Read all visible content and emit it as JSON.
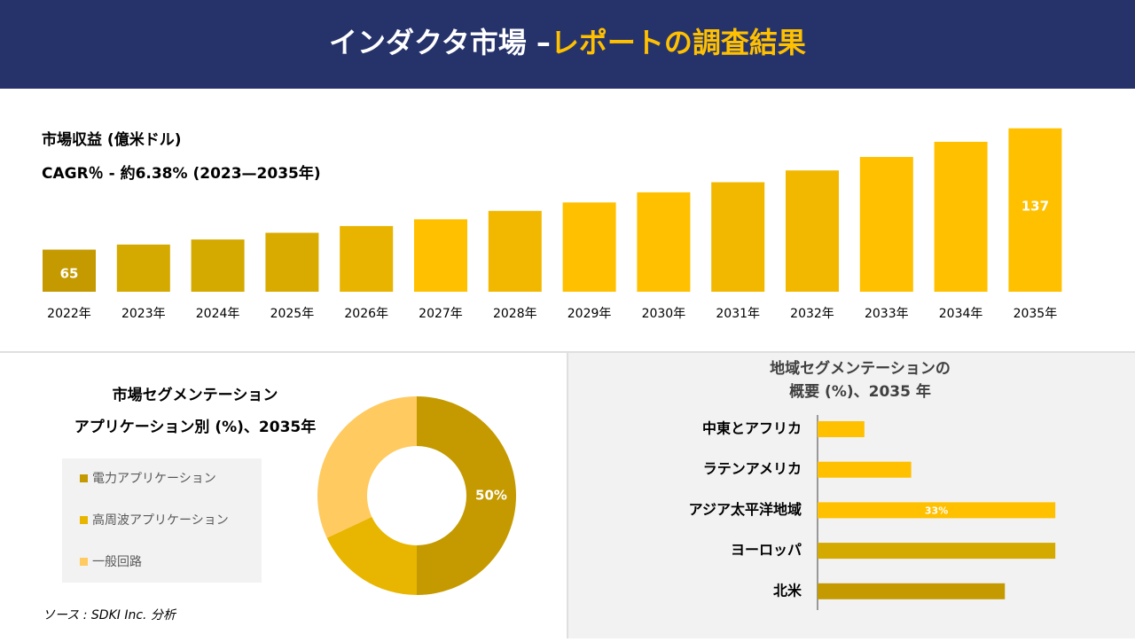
{
  "header": {
    "title_main": "インダクタ市場 –",
    "title_accent": "レポートの調査結果"
  },
  "source": "ソース : SDKI Inc. 分析",
  "chart_data": [
    {
      "type": "bar",
      "title": "市場収益 (億米ドル)",
      "subtitle": "CAGR％ - 約6.38% (2023—2035年)",
      "categories": [
        "2022年",
        "2023年",
        "2024年",
        "2025年",
        "2026年",
        "2027年",
        "2028年",
        "2029年",
        "2030年",
        "2031年",
        "2032年",
        "2033年",
        "2034年",
        "2035年"
      ],
      "values": [
        65,
        68,
        71,
        75,
        79,
        83,
        88,
        93,
        99,
        105,
        112,
        120,
        129,
        137
      ],
      "value_labels": [
        "65",
        null,
        null,
        null,
        null,
        null,
        null,
        null,
        null,
        null,
        null,
        null,
        null,
        "137"
      ],
      "colors": [
        "#c49a00",
        "#d4a900",
        "#d4a900",
        "#d9ab00",
        "#e8b400",
        "#ffc000",
        "#f2b800",
        "#ffc000",
        "#ffc000",
        "#f2b800",
        "#f2b800",
        "#ffc000",
        "#ffc000",
        "#ffc000"
      ],
      "ylim": [
        40,
        140
      ]
    },
    {
      "type": "donut",
      "title": [
        "市場セグメンテーション",
        "アプリケーション別 (%)、2035年"
      ],
      "categories": [
        "電力アプリケーション",
        "高周波アプリケーション",
        "一般回路"
      ],
      "values": [
        50,
        18,
        32
      ],
      "value_labels": [
        "50%",
        null,
        null
      ],
      "colors": [
        "#c49a00",
        "#e8b600",
        "#ffca5f"
      ]
    },
    {
      "type": "hbar",
      "title": [
        "地域セグメンテーションの",
        "概要 (%)、2035 年"
      ],
      "categories": [
        "中東とアフリカ",
        "ラテンアメリカ",
        "アジア太平洋地域",
        "ヨーロッパ",
        "北米"
      ],
      "values": [
        6.5,
        13,
        33,
        33,
        26
      ],
      "value_labels": [
        null,
        null,
        "33%",
        null,
        null
      ],
      "colors": [
        "#ffc000",
        "#ffc000",
        "#ffc000",
        "#d4a900",
        "#c49a00"
      ],
      "xlim": [
        0,
        40
      ]
    }
  ]
}
